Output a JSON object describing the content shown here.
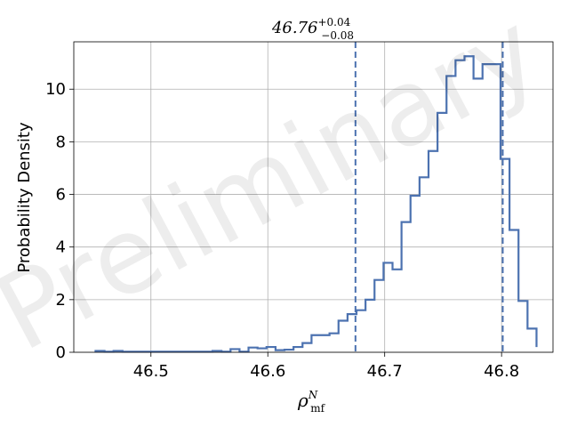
{
  "chart_data": {
    "type": "histogram",
    "title": {
      "base": "46.76",
      "sup": "+0.04",
      "sub": "−0.08"
    },
    "xlabel": {
      "base": "ρ",
      "sup": "N",
      "sub": "mf"
    },
    "ylabel": "Probability Density",
    "watermark": "Preliminary",
    "xlim": [
      46.434,
      46.844
    ],
    "ylim": [
      0,
      11.8
    ],
    "x_ticks": [
      {
        "value": 46.5,
        "label": "46.5"
      },
      {
        "value": 46.6,
        "label": "46.6"
      },
      {
        "value": 46.7,
        "label": "46.7"
      },
      {
        "value": 46.8,
        "label": "46.8"
      }
    ],
    "y_ticks": [
      {
        "value": 0,
        "label": "0"
      },
      {
        "value": 2,
        "label": "2"
      },
      {
        "value": 4,
        "label": "4"
      },
      {
        "value": 6,
        "label": "6"
      },
      {
        "value": 8,
        "label": "8"
      },
      {
        "value": 10,
        "label": "10"
      }
    ],
    "grid": true,
    "line_color": "#4c72b0",
    "bin_edges": [
      46.4526,
      46.4603,
      46.468,
      46.4757,
      46.4834,
      46.4911,
      46.4988,
      46.5065,
      46.5142,
      46.5219,
      46.5296,
      46.5373,
      46.545,
      46.5527,
      46.5604,
      46.5681,
      46.5758,
      46.5835,
      46.5912,
      46.5989,
      46.6066,
      46.6143,
      46.622,
      46.6297,
      46.6374,
      46.6451,
      46.6528,
      46.6605,
      46.6682,
      46.6759,
      46.6836,
      46.6913,
      46.699,
      46.7067,
      46.7144,
      46.7221,
      46.7298,
      46.7375,
      46.7452,
      46.7529,
      46.7606,
      46.7683,
      46.776,
      46.7837,
      46.7914,
      46.7991,
      46.8068,
      46.8145,
      46.8222,
      46.8299
    ],
    "densities": [
      0.05,
      0.02,
      0.05,
      0.02,
      0.02,
      0.02,
      0.02,
      0.02,
      0.02,
      0.02,
      0.02,
      0.02,
      0.02,
      0.05,
      0.02,
      0.12,
      0.02,
      0.18,
      0.15,
      0.2,
      0.08,
      0.1,
      0.2,
      0.35,
      0.65,
      0.65,
      0.72,
      1.2,
      1.45,
      1.6,
      2.0,
      2.75,
      3.4,
      3.15,
      4.95,
      5.95,
      6.65,
      7.65,
      9.1,
      10.5,
      11.1,
      11.25,
      10.4,
      10.95,
      10.95,
      7.35,
      4.65,
      1.95,
      0.9,
      0.2
    ],
    "vlines": [
      {
        "x": 46.675,
        "style": "dashed"
      },
      {
        "x": 46.801,
        "style": "dashed"
      }
    ]
  }
}
